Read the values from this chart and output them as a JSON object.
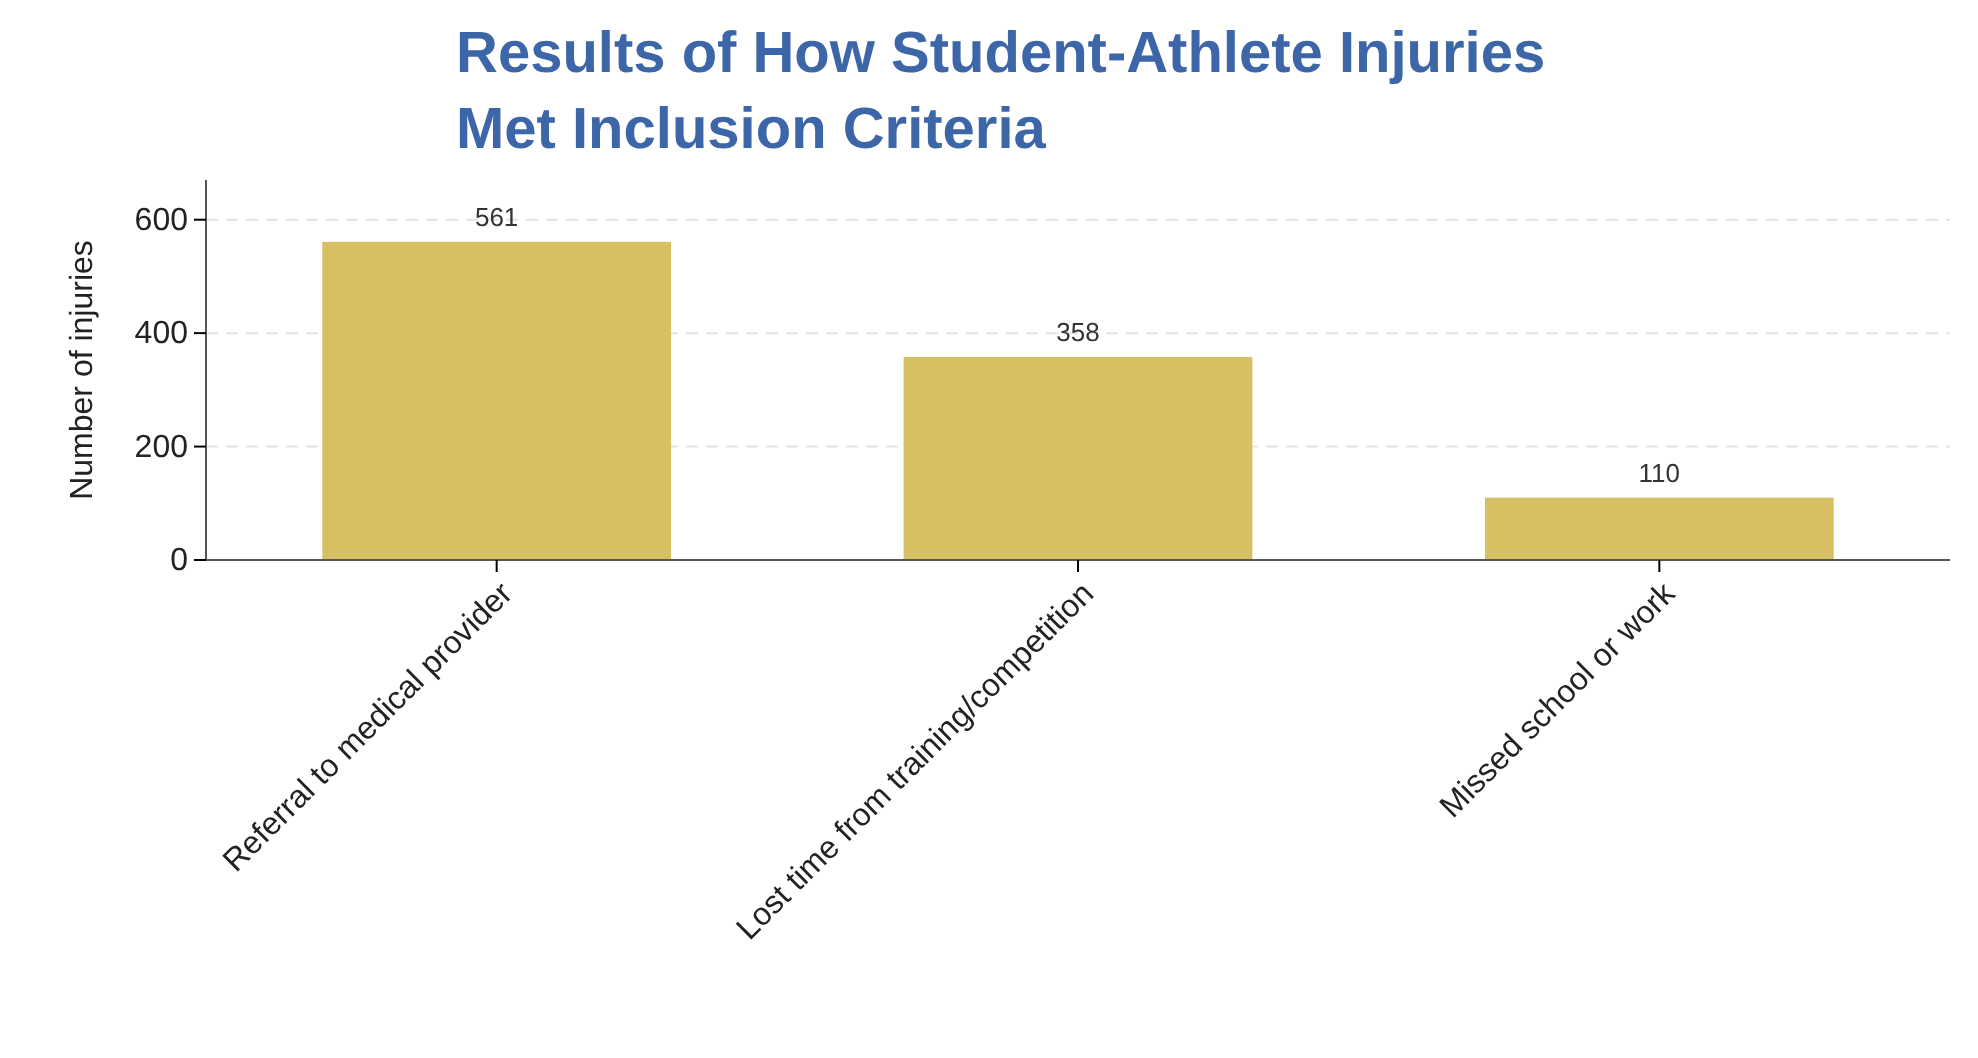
{
  "chart_data": {
    "type": "bar",
    "title": "Results of How Student-Athlete Injuries Met Inclusion Criteria",
    "ylabel": "Number of injuries",
    "categories": [
      "Referral to medical provider",
      "Lost time from training/competition",
      "Missed school or work"
    ],
    "values": [
      561,
      358,
      110
    ],
    "color": "#d7c064",
    "ylim": [
      0,
      670
    ],
    "yticks": [
      0,
      200,
      400,
      600
    ],
    "grid": "y",
    "data_labels": true
  }
}
